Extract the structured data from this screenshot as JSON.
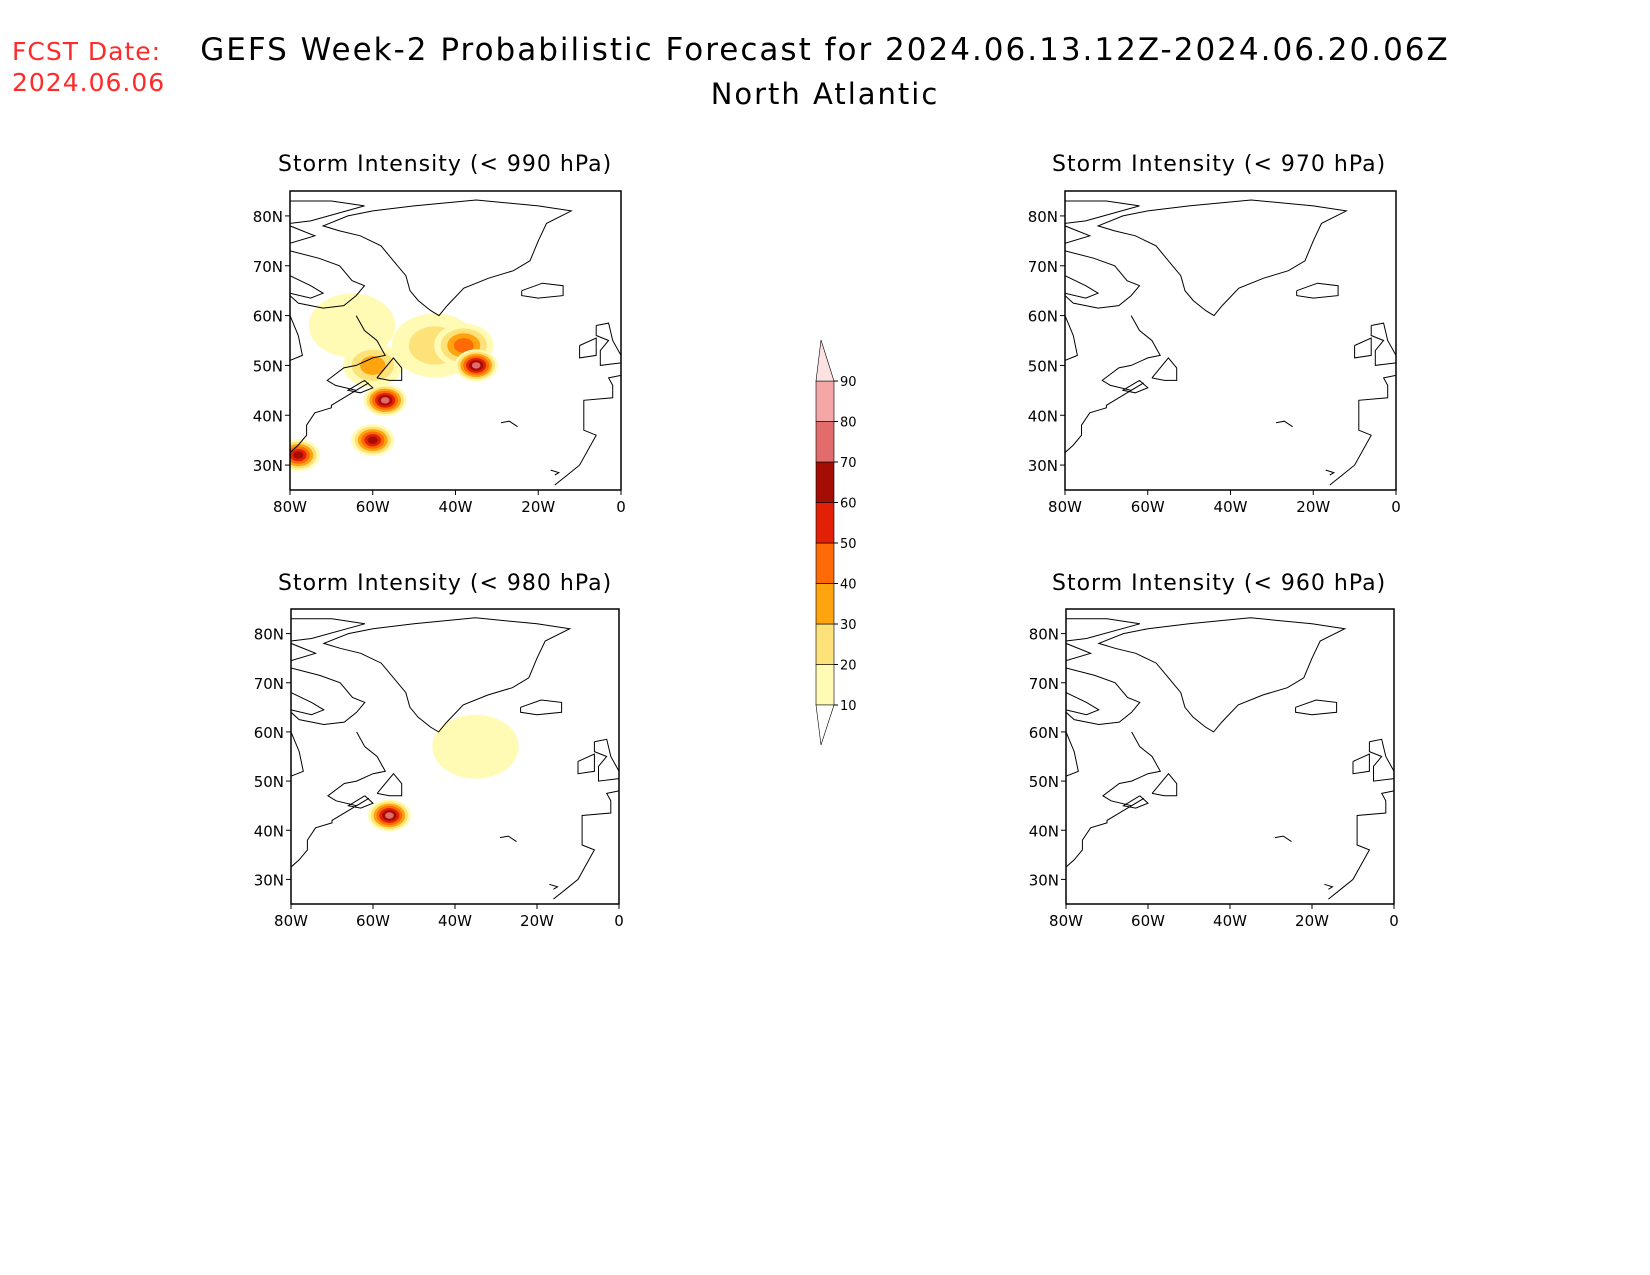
{
  "header": {
    "fcst_label": "FCST Date:",
    "fcst_date": "2024.06.06",
    "title": "GEFS Week-2 Probabilistic Forecast for 2024.06.13.12Z-2024.06.20.06Z",
    "subtitle": "North Atlantic"
  },
  "colors": {
    "fcst": "#ff2a2a",
    "scale": [
      "#fffbb5",
      "#fde27a",
      "#fda40f",
      "#fd6a06",
      "#e22006",
      "#a40d04",
      "#e26b6b",
      "#f5a6a6",
      "#fde2e2"
    ]
  },
  "chart_data": {
    "type": "heatmap",
    "colorbar": {
      "levels": [
        10,
        20,
        30,
        40,
        50,
        60,
        70,
        80,
        90
      ],
      "labels": [
        "10",
        "20",
        "30",
        "40",
        "50",
        "60",
        "70",
        "80",
        "90"
      ]
    },
    "x_ticks": [
      "80W",
      "60W",
      "40W",
      "20W",
      "0"
    ],
    "y_ticks": [
      "30N",
      "40N",
      "50N",
      "60N",
      "70N",
      "80N"
    ],
    "lon_range": [
      -80,
      0
    ],
    "lat_range": [
      25,
      85
    ],
    "panels": [
      {
        "title": "Storm Intensity (< 990 hPa)",
        "position": "top-left",
        "regions": [
          {
            "lon": -65,
            "lat": 58,
            "prob": 10
          },
          {
            "lon": -45,
            "lat": 54,
            "prob": 20
          },
          {
            "lon": -60,
            "lat": 50,
            "prob": 30
          },
          {
            "lon": -38,
            "lat": 54,
            "prob": 40
          },
          {
            "lon": -35,
            "lat": 50,
            "prob": 70
          },
          {
            "lon": -57,
            "lat": 43,
            "prob": 70
          },
          {
            "lon": -60,
            "lat": 35,
            "prob": 60
          },
          {
            "lon": -78,
            "lat": 32,
            "prob": 60
          }
        ]
      },
      {
        "title": "Storm Intensity (< 970 hPa)",
        "position": "top-right",
        "regions": []
      },
      {
        "title": "Storm Intensity (< 980 hPa)",
        "position": "bottom-left",
        "regions": [
          {
            "lon": -35,
            "lat": 57,
            "prob": 10
          },
          {
            "lon": -56,
            "lat": 43,
            "prob": 70
          }
        ]
      },
      {
        "title": "Storm Intensity (< 960 hPa)",
        "position": "bottom-right",
        "regions": []
      }
    ]
  }
}
